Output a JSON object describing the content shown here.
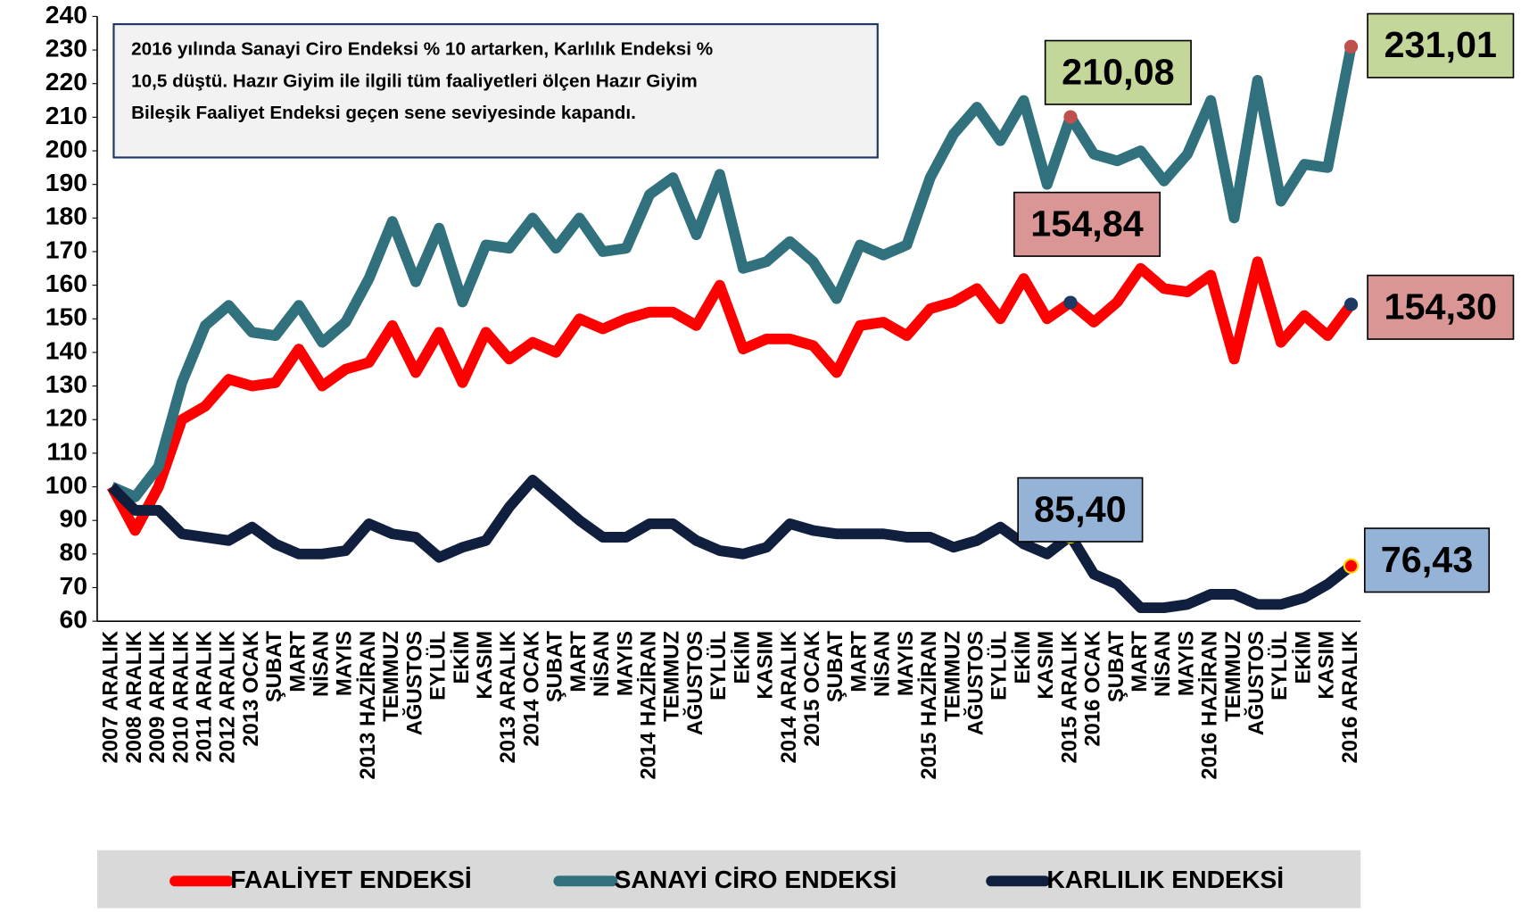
{
  "chart_data": {
    "type": "line",
    "annotation": [
      "2016 yılında Sanayi Ciro Endeksi % 10 artarken, Karlılık Endeksi %",
      "10,5 düştü. Hazır Giyim ile ilgili tüm faaliyetleri ölçen Hazır Giyim",
      "Bileşik Faaliyet Endeksi geçen sene seviyesinde kapandı."
    ],
    "categories": [
      "2007 ARALIK",
      "2008 ARALIK",
      "2009 ARALIK",
      "2010 ARALIK",
      "2011 ARALIK",
      "2012 ARALIK",
      "2013 OCAK",
      "ŞUBAT",
      "MART",
      "NİSAN",
      "MAYIS",
      "2013 HAZİRAN",
      "TEMMUZ",
      "AĞUSTOS",
      "EYLÜL",
      "EKİM",
      "KASIM",
      "2013 ARALIK",
      "2014 OCAK",
      "ŞUBAT",
      "MART",
      "NİSAN",
      "MAYIS",
      "2014 HAZİRAN",
      "TEMMUZ",
      "AĞUSTOS",
      "EYLÜL",
      "EKİM",
      "KASIM",
      "2014 ARALIK",
      "2015 OCAK",
      "ŞUBAT",
      "MART",
      "NİSAN",
      "MAYIS",
      "2015 HAZİRAN",
      "TEMMUZ",
      "AĞUSTOS",
      "EYLÜL",
      "EKİM",
      "KASIM",
      "2015 ARALIK",
      "2016 OCAK",
      "ŞUBAT",
      "MART",
      "NİSAN",
      "MAYIS",
      "2016 HAZİRAN",
      "TEMMUZ",
      "AĞUSTOS",
      "EYLÜL",
      "EKİM",
      "KASIM",
      "2016 ARALIK"
    ],
    "series": [
      {
        "name": "FAALİYET ENDEKSİ",
        "color": "#ff0000",
        "marker_color": "#1f3864",
        "label_color": "#da9694",
        "values": [
          100,
          87,
          100,
          120,
          124,
          132,
          130,
          131,
          141,
          130,
          135,
          137,
          148,
          134,
          146,
          131,
          146,
          138,
          143,
          140,
          150,
          147,
          150,
          152,
          152,
          148,
          160,
          141,
          144,
          144,
          142,
          134,
          148,
          149,
          145,
          153,
          155,
          159,
          150,
          162,
          150,
          154.84,
          149,
          155,
          165,
          159,
          158,
          163,
          138,
          167,
          143,
          151,
          145,
          154.3
        ],
        "value_labels": [
          null,
          null,
          null,
          null,
          null,
          null,
          null,
          null,
          null,
          null,
          null,
          null,
          null,
          null,
          null,
          null,
          null,
          null,
          null,
          null,
          null,
          null,
          null,
          null,
          null,
          null,
          null,
          null,
          null,
          null,
          null,
          null,
          null,
          null,
          null,
          null,
          null,
          null,
          null,
          null,
          null,
          "154,84",
          null,
          null,
          null,
          null,
          null,
          null,
          null,
          null,
          null,
          null,
          null,
          "154,30"
        ]
      },
      {
        "name": "SANAYİ CİRO ENDEKSİ",
        "color": "#31707d",
        "marker_color": "#c0504d",
        "label_color": "#c4d79b",
        "values": [
          100,
          97,
          106,
          131,
          148,
          154,
          146,
          145,
          154,
          143,
          149,
          162,
          179,
          161,
          177,
          155,
          172,
          171,
          180,
          171,
          180,
          170,
          171,
          187,
          192,
          175,
          193,
          165,
          167,
          173,
          167,
          156,
          172,
          169,
          172,
          192,
          205,
          213,
          203,
          215,
          190,
          210.08,
          199,
          197,
          200,
          191,
          199,
          215,
          180,
          221,
          185,
          196,
          195,
          231.01
        ],
        "value_labels": [
          null,
          null,
          null,
          null,
          null,
          null,
          null,
          null,
          null,
          null,
          null,
          null,
          null,
          null,
          null,
          null,
          null,
          null,
          null,
          null,
          null,
          null,
          null,
          null,
          null,
          null,
          null,
          null,
          null,
          null,
          null,
          null,
          null,
          null,
          null,
          null,
          null,
          null,
          null,
          null,
          null,
          "210,08",
          null,
          null,
          null,
          null,
          null,
          null,
          null,
          null,
          null,
          null,
          null,
          "231,01"
        ]
      },
      {
        "name": "KARLILIK ENDEKSİ",
        "color": "#0f1f3d",
        "marker_color": "#ff0000",
        "label_color": "#95b3d7",
        "values": [
          100,
          93,
          93,
          86,
          85,
          84,
          88,
          83,
          80,
          80,
          81,
          89,
          86,
          85,
          79,
          82,
          84,
          94,
          102,
          96,
          90,
          85,
          85,
          89,
          89,
          84,
          81,
          80,
          82,
          89,
          87,
          86,
          86,
          86,
          85,
          85,
          82,
          84,
          88,
          83,
          80,
          85.4,
          74,
          71,
          64,
          64,
          65,
          68,
          68,
          65,
          65,
          67,
          71,
          76.43
        ],
        "value_labels": [
          null,
          null,
          null,
          null,
          null,
          null,
          null,
          null,
          null,
          null,
          null,
          null,
          null,
          null,
          null,
          null,
          null,
          null,
          null,
          null,
          null,
          null,
          null,
          null,
          null,
          null,
          null,
          null,
          null,
          null,
          null,
          null,
          null,
          null,
          null,
          null,
          null,
          null,
          null,
          null,
          null,
          "85,40",
          null,
          null,
          null,
          null,
          null,
          null,
          null,
          null,
          null,
          null,
          null,
          "76,43"
        ]
      }
    ],
    "ylim": [
      60,
      240
    ],
    "yticks": [
      60,
      70,
      80,
      90,
      100,
      110,
      120,
      130,
      140,
      150,
      160,
      170,
      180,
      190,
      200,
      210,
      220,
      230,
      240
    ],
    "legend": "bottom"
  }
}
